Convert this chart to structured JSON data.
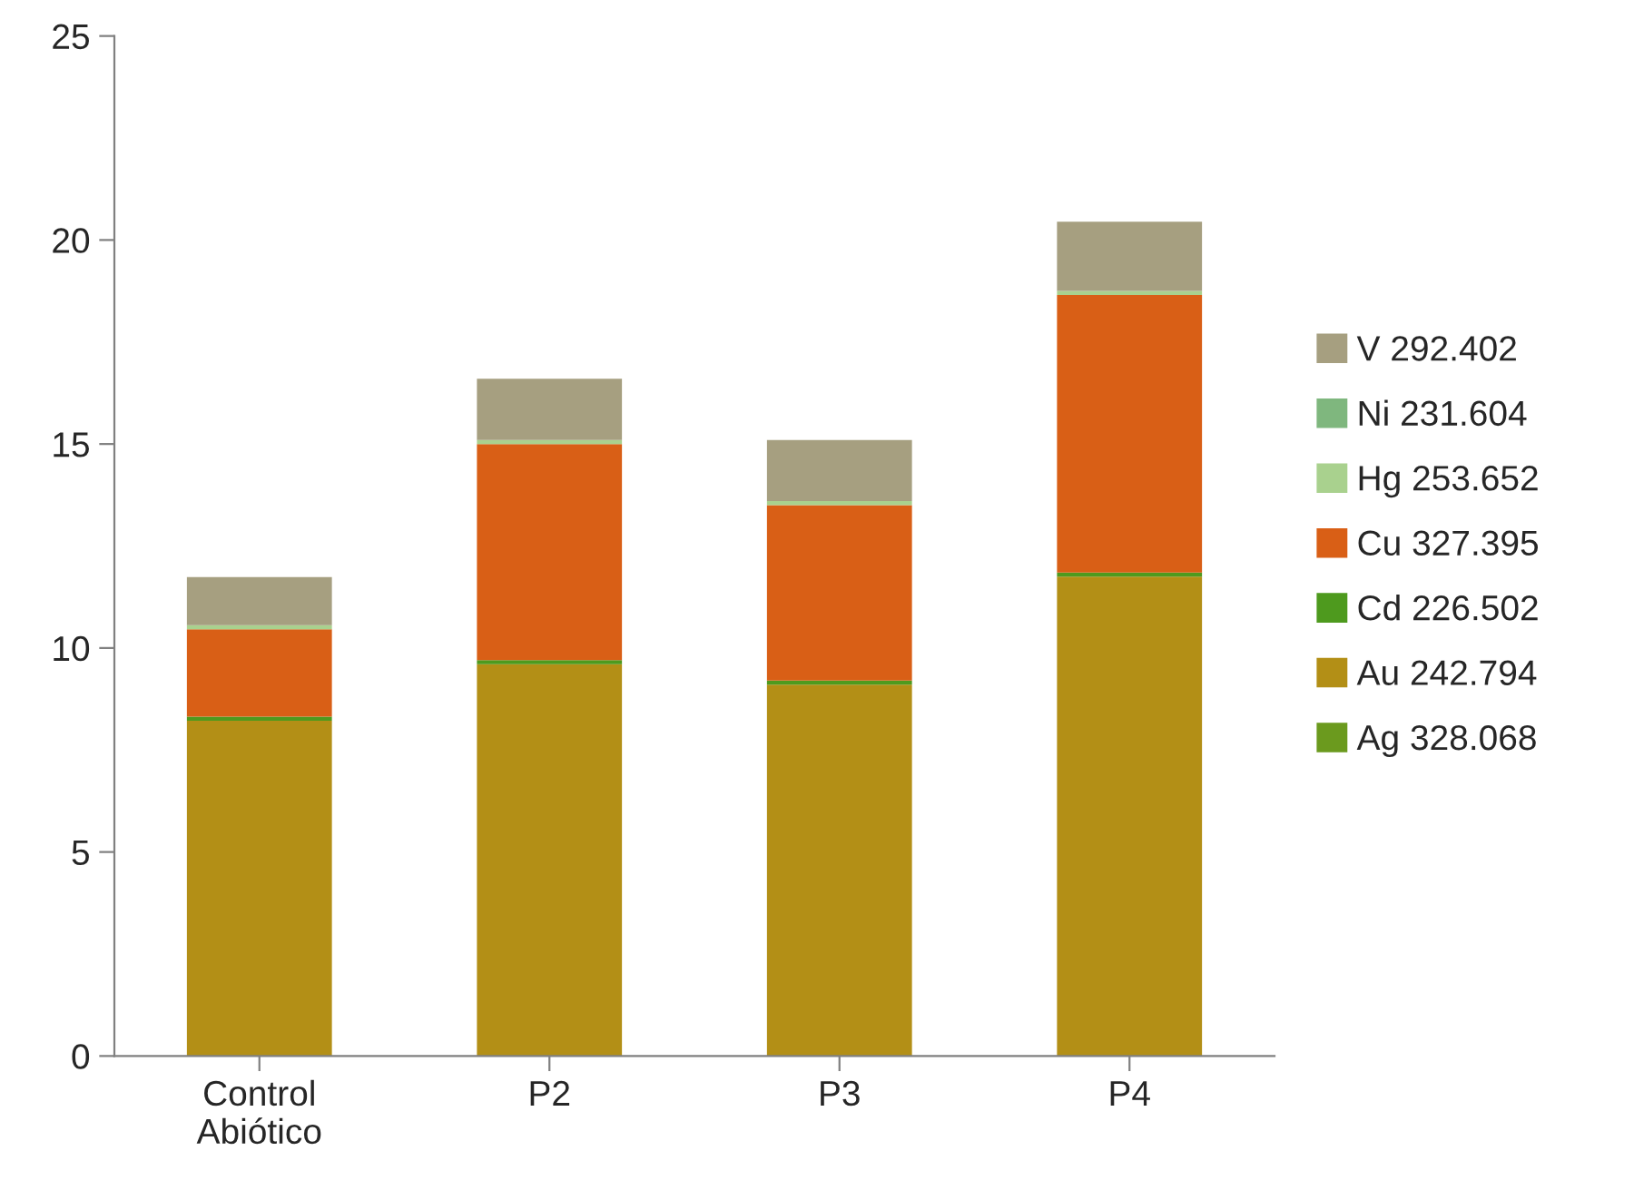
{
  "chart_data": {
    "type": "bar",
    "stacked": true,
    "categories": [
      "Control\nAbiótico",
      "P2",
      "P3",
      "P4"
    ],
    "series": [
      {
        "name": "Ag 328.068",
        "color": "#6b9a1e",
        "values": [
          null,
          null,
          null,
          null
        ]
      },
      {
        "name": "Au 242.794",
        "color": "#b38f16",
        "values": [
          8.22,
          9.6,
          9.1,
          11.75
        ]
      },
      {
        "name": "Cd 226.502",
        "color": "#4e9a1e",
        "values": [
          0.1,
          0.1,
          0.1,
          0.1
        ]
      },
      {
        "name": "Cu 327.395",
        "color": "#d95f16",
        "values": [
          2.14,
          5.3,
          4.3,
          6.8
        ]
      },
      {
        "name": "Hg 253.652",
        "color": "#a9d18e",
        "values": [
          0.1,
          0.1,
          0.1,
          0.1
        ]
      },
      {
        "name": "Ni 231.604",
        "color": "#7fb77e",
        "values": [
          null,
          null,
          null,
          null
        ]
      },
      {
        "name": "V 292.402",
        "color": "#a69f80",
        "values": [
          1.18,
          1.5,
          1.5,
          1.7
        ]
      }
    ],
    "ylim": [
      0,
      25
    ],
    "yticks": [
      0,
      5,
      10,
      15,
      20,
      25
    ],
    "grid": false,
    "legend": "right"
  }
}
